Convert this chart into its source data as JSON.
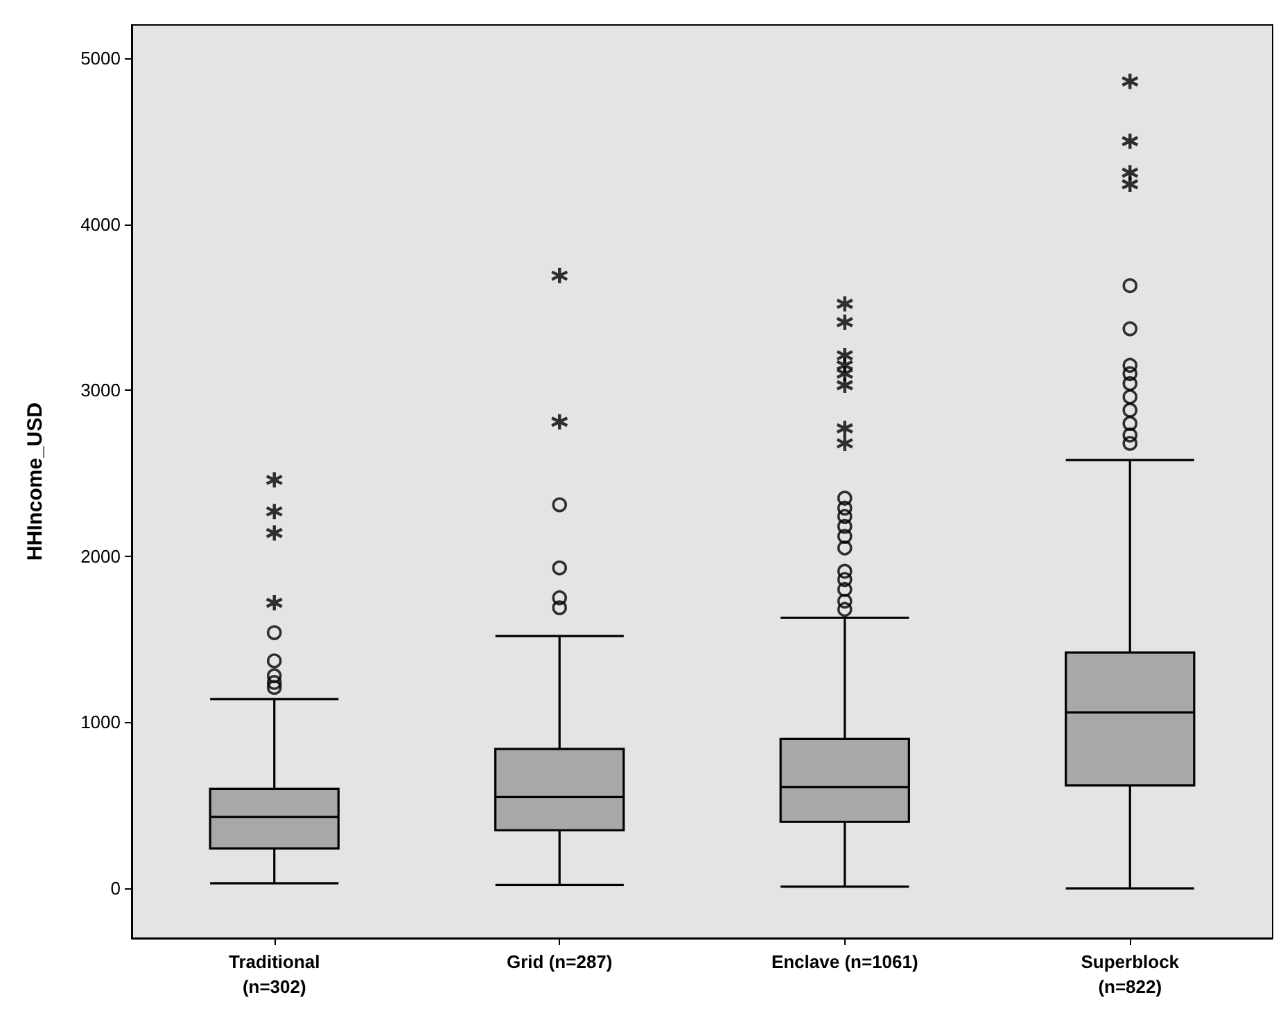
{
  "chart_data": {
    "type": "box",
    "ylabel": "HHIncome_USD",
    "categories": [
      "Traditional\n(n=302)",
      "Grid (n=287)",
      "Enclave (n=1061)",
      "Superblock\n(n=822)"
    ],
    "ylim": [
      -300,
      5200
    ],
    "yticks": [
      0,
      1000,
      2000,
      3000,
      4000,
      5000
    ],
    "series": [
      {
        "color": "#a8a8a8",
        "marker": "circle",
        "boxes": [
          {
            "low": 30,
            "q1": 240,
            "median": 430,
            "q3": 600,
            "high": 1140,
            "outliers": [
              1540,
              1370,
              1280,
              1240,
              1210
            ]
          },
          {
            "low": 20,
            "q1": 350,
            "median": 550,
            "q3": 840,
            "high": 1520,
            "outliers": [
              2310,
              1930,
              1750,
              1690
            ]
          },
          {
            "low": 10,
            "q1": 400,
            "median": 610,
            "q3": 900,
            "high": 1630,
            "outliers": [
              2350,
              2290,
              2240,
              2180,
              2120,
              2050,
              1910,
              1860,
              1800,
              1730,
              1680
            ]
          },
          {
            "low": 0,
            "q1": 620,
            "median": 1060,
            "q3": 1420,
            "high": 2580,
            "outliers": [
              3630,
              3370,
              3150,
              3100,
              3040,
              2960,
              2880,
              2800,
              2730,
              2680
            ]
          }
        ]
      },
      {
        "type": "scatter",
        "marker": "cross",
        "color": "#000000",
        "x": [
          "Traditional\n(n=302)",
          "Traditional\n(n=302)",
          "Traditional\n(n=302)",
          "Traditional\n(n=302)",
          "Grid (n=287)",
          "Grid (n=287)",
          "Enclave (n=1061)",
          "Enclave (n=1061)",
          "Enclave (n=1061)",
          "Enclave (n=1061)",
          "Enclave (n=1061)",
          "Enclave (n=1061)",
          "Enclave (n=1061)",
          "Enclave (n=1061)",
          "Superblock\n(n=822)",
          "Superblock\n(n=822)",
          "Superblock\n(n=822)",
          "Superblock\n(n=822)"
        ],
        "values": [
          2460,
          2270,
          2140,
          1720,
          3690,
          2810,
          3520,
          3410,
          3210,
          3150,
          3100,
          3030,
          2770,
          2680,
          4860,
          4500,
          4310,
          4240
        ]
      }
    ]
  }
}
